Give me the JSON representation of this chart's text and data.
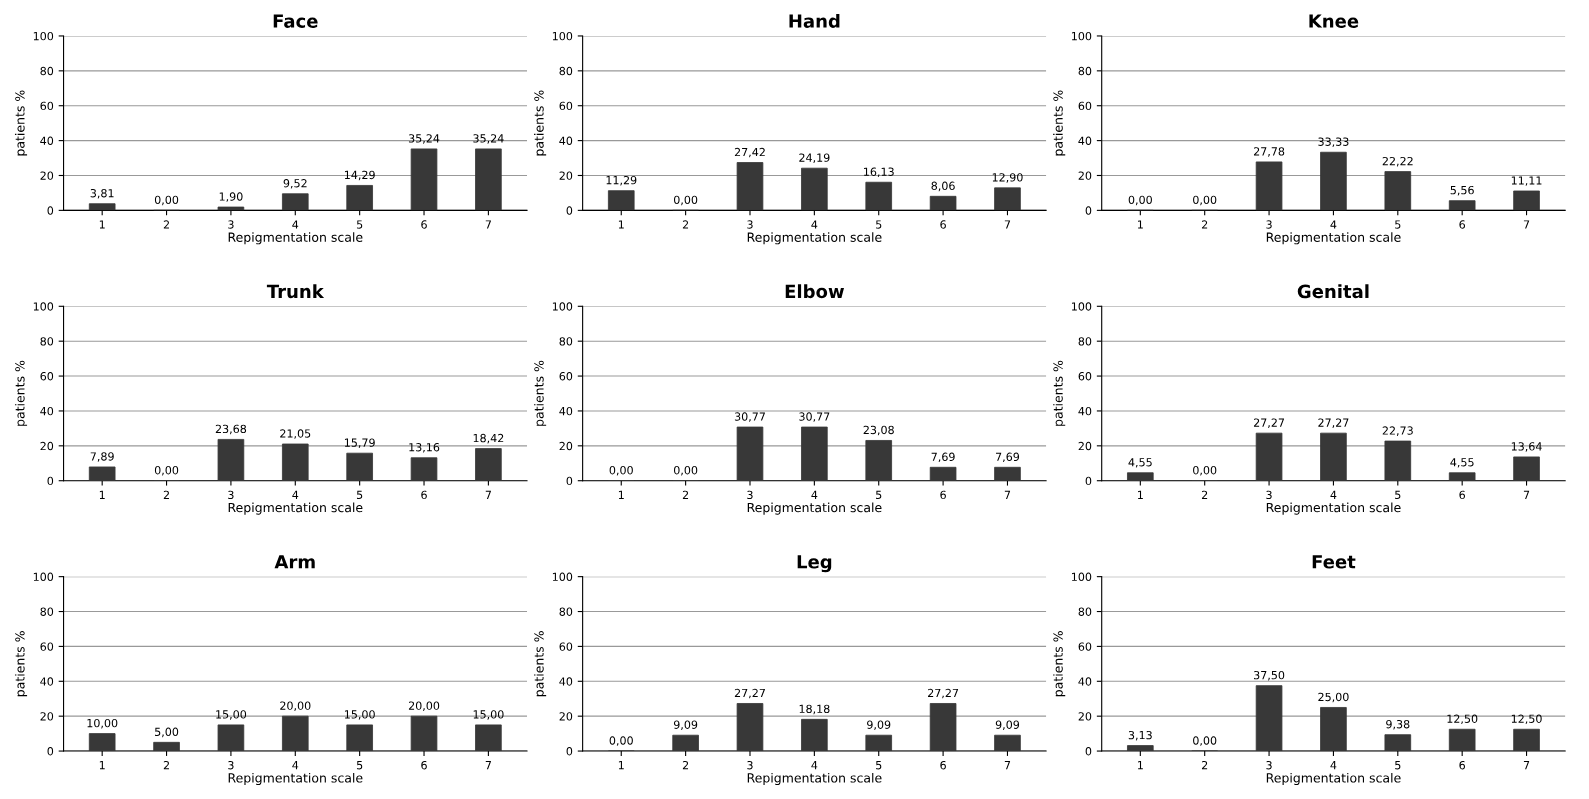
{
  "chart_data": [
    {
      "type": "bar",
      "title": "Face",
      "xlabel": "Repigmentation scale",
      "ylabel": "patients %",
      "categories": [
        "1",
        "2",
        "3",
        "4",
        "5",
        "6",
        "7"
      ],
      "values": [
        3.81,
        0,
        1.9,
        9.52,
        14.29,
        35.24,
        35.24
      ],
      "value_labels": [
        "3,81",
        "0,00",
        "1,90",
        "9,52",
        "14,29",
        "35,24",
        "35,24"
      ],
      "color": "#383838",
      "ylim": [
        0,
        100
      ],
      "yticks": [
        0,
        20,
        40,
        60,
        80,
        100
      ],
      "grid": "y"
    },
    {
      "type": "bar",
      "title": "Hand",
      "xlabel": "Repigmentation scale",
      "ylabel": "patients %",
      "categories": [
        "1",
        "2",
        "3",
        "4",
        "5",
        "6",
        "7"
      ],
      "values": [
        11.29,
        0,
        27.42,
        24.19,
        16.13,
        8.06,
        12.9
      ],
      "value_labels": [
        "11,29",
        "0,00",
        "27,42",
        "24,19",
        "16,13",
        "8,06",
        "12,90"
      ],
      "color": "#383838",
      "ylim": [
        0,
        100
      ],
      "yticks": [
        0,
        20,
        40,
        60,
        80,
        100
      ],
      "grid": "y"
    },
    {
      "type": "bar",
      "title": "Knee",
      "xlabel": "Repigmentation scale",
      "ylabel": "patients %",
      "categories": [
        "1",
        "2",
        "3",
        "4",
        "5",
        "6",
        "7"
      ],
      "values": [
        0,
        0,
        27.78,
        33.33,
        22.22,
        5.56,
        11.11
      ],
      "value_labels": [
        "0,00",
        "0,00",
        "27,78",
        "33,33",
        "22,22",
        "5,56",
        "11,11"
      ],
      "color": "#383838",
      "ylim": [
        0,
        100
      ],
      "yticks": [
        0,
        20,
        40,
        60,
        80,
        100
      ],
      "grid": "y"
    },
    {
      "type": "bar",
      "title": "Trunk",
      "xlabel": "Repigmentation scale",
      "ylabel": "patients %",
      "categories": [
        "1",
        "2",
        "3",
        "4",
        "5",
        "6",
        "7"
      ],
      "values": [
        7.89,
        0,
        23.68,
        21.05,
        15.79,
        13.16,
        18.42
      ],
      "value_labels": [
        "7,89",
        "0,00",
        "23,68",
        "21,05",
        "15,79",
        "13,16",
        "18,42"
      ],
      "color": "#383838",
      "ylim": [
        0,
        100
      ],
      "yticks": [
        0,
        20,
        40,
        60,
        80,
        100
      ],
      "grid": "y"
    },
    {
      "type": "bar",
      "title": "Elbow",
      "xlabel": "Repigmentation scale",
      "ylabel": "patients %",
      "categories": [
        "1",
        "2",
        "3",
        "4",
        "5",
        "6",
        "7"
      ],
      "values": [
        0,
        0,
        30.77,
        30.77,
        23.08,
        7.69,
        7.69
      ],
      "value_labels": [
        "0,00",
        "0,00",
        "30,77",
        "30,77",
        "23,08",
        "7,69",
        "7,69"
      ],
      "color": "#383838",
      "ylim": [
        0,
        100
      ],
      "yticks": [
        0,
        20,
        40,
        60,
        80,
        100
      ],
      "grid": "y"
    },
    {
      "type": "bar",
      "title": "Genital",
      "xlabel": "Repigmentation scale",
      "ylabel": "patients %",
      "categories": [
        "1",
        "2",
        "3",
        "4",
        "5",
        "6",
        "7"
      ],
      "values": [
        4.55,
        0,
        27.27,
        27.27,
        22.73,
        4.55,
        13.64
      ],
      "value_labels": [
        "4,55",
        "0,00",
        "27,27",
        "27,27",
        "22,73",
        "4,55",
        "13,64"
      ],
      "color": "#383838",
      "ylim": [
        0,
        100
      ],
      "yticks": [
        0,
        20,
        40,
        60,
        80,
        100
      ],
      "grid": "y"
    },
    {
      "type": "bar",
      "title": "Arm",
      "xlabel": "Repigmentation scale",
      "ylabel": "patients %",
      "categories": [
        "1",
        "2",
        "3",
        "4",
        "5",
        "6",
        "7"
      ],
      "values": [
        10,
        5,
        15,
        20,
        15,
        20,
        15
      ],
      "value_labels": [
        "10,00",
        "5,00",
        "15,00",
        "20,00",
        "15,00",
        "20,00",
        "15,00"
      ],
      "color": "#383838",
      "ylim": [
        0,
        100
      ],
      "yticks": [
        0,
        20,
        40,
        60,
        80,
        100
      ],
      "grid": "y"
    },
    {
      "type": "bar",
      "title": "Leg",
      "xlabel": "Repigmentation scale",
      "ylabel": "patients %",
      "categories": [
        "1",
        "2",
        "3",
        "4",
        "5",
        "6",
        "7"
      ],
      "values": [
        0,
        9.09,
        27.27,
        18.18,
        9.09,
        27.27,
        9.09
      ],
      "value_labels": [
        "0,00",
        "9,09",
        "27,27",
        "18,18",
        "9,09",
        "27,27",
        "9,09"
      ],
      "color": "#383838",
      "ylim": [
        0,
        100
      ],
      "yticks": [
        0,
        20,
        40,
        60,
        80,
        100
      ],
      "grid": "y"
    },
    {
      "type": "bar",
      "title": "Feet",
      "xlabel": "Repigmentation scale",
      "ylabel": "patients %",
      "categories": [
        "1",
        "2",
        "3",
        "4",
        "5",
        "6",
        "7"
      ],
      "values": [
        3.13,
        0,
        37.5,
        25,
        9.38,
        12.5,
        12.5
      ],
      "value_labels": [
        "3,13",
        "0,00",
        "37,50",
        "25,00",
        "9,38",
        "12,50",
        "12,50"
      ],
      "color": "#383838",
      "ylim": [
        0,
        100
      ],
      "yticks": [
        0,
        20,
        40,
        60,
        80,
        100
      ],
      "grid": "y"
    }
  ]
}
